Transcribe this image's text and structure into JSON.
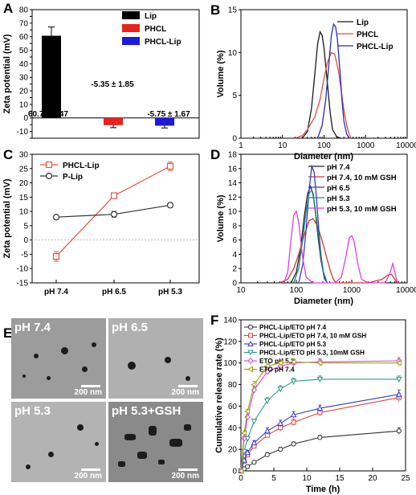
{
  "panel_labels": {
    "A": "A",
    "B": "B",
    "C": "C",
    "D": "D",
    "E": "E",
    "F": "F"
  },
  "chart_data": [
    {
      "id": "A",
      "type": "bar",
      "ylabel": "Zeta potential (mV)",
      "ylim": [
        -15,
        80
      ],
      "yticks": [
        -15,
        -10,
        -5,
        0,
        5,
        10,
        15,
        20,
        25,
        30,
        35,
        40,
        45,
        50,
        55,
        60,
        65,
        70,
        75,
        80
      ],
      "ytick_labels": [
        "",
        "-10",
        "",
        "0",
        "",
        "10",
        "",
        "20",
        "",
        "30",
        "",
        "40",
        "",
        "50",
        "",
        "60",
        "",
        "70",
        "",
        "80"
      ],
      "categories": [
        "Lip",
        "PHCL",
        "PHCL-Lip"
      ],
      "values": [
        60.7,
        -5.35,
        -5.75
      ],
      "errors": [
        6.47,
        1.85,
        1.67
      ],
      "colors": [
        "#000000",
        "#e8231b",
        "#1b1bd9"
      ],
      "legend": [
        "Lip",
        "PHCL",
        "PHCL-Lip"
      ],
      "legend_position": "top-right",
      "annotations": [
        "60.7 ± 6.47",
        "-5.35 ± 1.85",
        "-5.75 ± 1.67"
      ]
    },
    {
      "id": "B",
      "type": "line",
      "xscale": "log",
      "xlabel": "Diameter (nm)",
      "ylabel": "Volume (%)",
      "xlim": [
        1,
        10000
      ],
      "ylim": [
        0,
        15
      ],
      "xticks": [
        1,
        10,
        100,
        1000,
        10000
      ],
      "xtick_labels": [
        "1",
        "10",
        "100",
        "1000",
        "10000"
      ],
      "yticks": [
        0,
        5,
        10,
        15
      ],
      "legend_position": "top-right",
      "series": [
        {
          "name": "Lip",
          "color": "#1a1a1a",
          "x": [
            30,
            40,
            50,
            60,
            70,
            80,
            90,
            100,
            120,
            140,
            160,
            200,
            250
          ],
          "y": [
            0,
            0.8,
            3.5,
            7.5,
            11,
            12.4,
            12,
            10.5,
            6.5,
            3,
            1,
            0.2,
            0
          ]
        },
        {
          "name": "PHCL",
          "color": "#e84a3a",
          "x": [
            20,
            30,
            40,
            60,
            80,
            100,
            120,
            150,
            180,
            220,
            260,
            300,
            350,
            400,
            450
          ],
          "y": [
            0,
            0.3,
            1,
            2.5,
            4.5,
            7,
            8.8,
            10,
            9.8,
            8,
            5.5,
            3.3,
            1.5,
            0.5,
            0
          ]
        },
        {
          "name": "PHCL-Lip",
          "color": "#2a2ab8",
          "x": [
            70,
            90,
            110,
            130,
            150,
            170,
            190,
            210,
            240,
            270,
            300,
            350,
            400
          ],
          "y": [
            0,
            1.5,
            4.5,
            8.5,
            12,
            13.3,
            13,
            11.5,
            8,
            4.5,
            2,
            0.5,
            0
          ]
        }
      ]
    },
    {
      "id": "C",
      "type": "line",
      "ylabel": "Zeta potential (mV)",
      "categories": [
        "pH 7.4",
        "pH 6.5",
        "pH 5.3"
      ],
      "ylim": [
        -15,
        30
      ],
      "yticks": [
        -15,
        -10,
        -5,
        0,
        5,
        10,
        15,
        20,
        25,
        30
      ],
      "legend_position": "top-left",
      "series": [
        {
          "name": "PHCL-Lip",
          "color": "#e8543f",
          "values": [
            -5.75,
            15.5,
            25.8
          ],
          "errors": [
            1.67,
            0.8,
            1.5
          ],
          "marker": "open-square"
        },
        {
          "name": "P-Lip",
          "color": "#333333",
          "values": [
            8,
            9,
            12.2
          ],
          "errors": [
            0.5,
            1.0,
            0.8
          ],
          "marker": "open-circle"
        }
      ]
    },
    {
      "id": "D",
      "type": "line",
      "xscale": "log",
      "xlabel": "Diameter (nm)",
      "ylabel": "Volume (%)",
      "xlim": [
        10,
        10000
      ],
      "ylim": [
        0,
        18
      ],
      "xticks": [
        10,
        100,
        1000,
        10000
      ],
      "xtick_labels": [
        "10",
        "100",
        "1000",
        "10000"
      ],
      "yticks": [
        0,
        2,
        4,
        6,
        8,
        10,
        12,
        14,
        16,
        18
      ],
      "legend_position": "top-right",
      "series": [
        {
          "name": "pH 7.4",
          "color": "#222222",
          "x": [
            80,
            100,
            120,
            140,
            160,
            180,
            200,
            220,
            250,
            280,
            320,
            360
          ],
          "y": [
            0,
            1.5,
            5,
            9.5,
            12.5,
            13.5,
            12.5,
            10,
            6,
            3,
            0.8,
            0
          ]
        },
        {
          "name": "pH 7.4, 10 mM GSH",
          "color": "#d43a2e",
          "x": [
            50,
            70,
            90,
            110,
            140,
            170,
            200,
            240,
            290,
            340,
            400,
            460,
            520,
            800,
            2000,
            3500,
            4500,
            5200,
            6000,
            6600
          ],
          "y": [
            0,
            0.5,
            2,
            4,
            6.8,
            8.7,
            9,
            8,
            6,
            4,
            2,
            0.6,
            0,
            0,
            0,
            0.5,
            1.1,
            1.2,
            0.5,
            0
          ]
        },
        {
          "name": "pH 6.5",
          "color": "#3838d9",
          "x": [
            110,
            130,
            150,
            170,
            190,
            210,
            230,
            260,
            290,
            320,
            360
          ],
          "y": [
            0,
            2.5,
            7.5,
            13,
            16.3,
            15.5,
            12,
            6.5,
            2.5,
            0.6,
            0
          ]
        },
        {
          "name": "pH 5.3",
          "color": "#1f8a7a",
          "x": [
            90,
            110,
            130,
            150,
            170,
            190,
            210,
            240,
            270,
            310,
            360
          ],
          "y": [
            0,
            2,
            6,
            10,
            12.5,
            13,
            11.5,
            8,
            4.5,
            1.5,
            0
          ]
        },
        {
          "name": "pH 5.3, 10 mM GSH",
          "color": "#e040e0",
          "x": [
            60,
            70,
            80,
            90,
            100,
            110,
            130,
            150,
            200,
            300,
            500,
            650,
            800,
            900,
            1000,
            1100,
            1300,
            1500,
            2000,
            4000,
            4800,
            5500,
            6000,
            6500,
            7000
          ],
          "y": [
            0,
            1.5,
            6,
            9.5,
            10,
            8.5,
            3.5,
            0.8,
            0,
            0,
            0,
            0.8,
            4,
            6.3,
            6.6,
            5.8,
            2.5,
            0.5,
            0,
            0,
            1.2,
            2.7,
            1.5,
            0.3,
            0
          ]
        }
      ]
    },
    {
      "id": "F",
      "type": "line",
      "xlabel": "Time (h)",
      "ylabel": "Cumulative release rate (%)",
      "xlim": [
        0,
        25
      ],
      "ylim": [
        0,
        140
      ],
      "xticks": [
        0,
        5,
        10,
        15,
        20,
        25
      ],
      "yticks": [
        0,
        20,
        40,
        60,
        80,
        100,
        120,
        140
      ],
      "legend_position": "top-left",
      "series": [
        {
          "name": "PHCL-Lip/ETO pH 7.4",
          "color": "#333333",
          "marker": "open-circle",
          "x": [
            0,
            0.5,
            1,
            2,
            4,
            6,
            8,
            12,
            24
          ],
          "y": [
            0,
            2,
            4,
            8,
            15,
            20,
            25,
            31,
            37
          ],
          "errors": [
            0,
            1,
            1,
            1,
            2,
            2,
            2,
            2,
            3
          ]
        },
        {
          "name": "PHCL-Lip/ETO pH 7.4, 10 mM GSH",
          "color": "#e0413a",
          "marker": "open-square",
          "x": [
            0,
            0.5,
            1,
            2,
            4,
            6,
            8,
            12,
            24
          ],
          "y": [
            0,
            9,
            15,
            23,
            33,
            40,
            45,
            54,
            68
          ],
          "errors": [
            0,
            1,
            1,
            2,
            2,
            3,
            3,
            3,
            4
          ]
        },
        {
          "name": "PHCL-Lip/ETO pH 5.3",
          "color": "#3a3ad0",
          "marker": "open-triangle",
          "x": [
            0,
            0.5,
            1,
            2,
            4,
            6,
            8,
            12,
            24
          ],
          "y": [
            0,
            10,
            17,
            26,
            37,
            44,
            52,
            58,
            71
          ],
          "errors": [
            0,
            1,
            2,
            2,
            3,
            3,
            3,
            3,
            4
          ]
        },
        {
          "name": "PHCL-Lip/ETO pH 5.3, 10mM GSH",
          "color": "#2a9a8a",
          "marker": "open-down-triangle",
          "x": [
            0,
            0.5,
            1,
            2,
            4,
            6,
            8,
            12,
            24
          ],
          "y": [
            0,
            18,
            30,
            46,
            65,
            76,
            83,
            85,
            85
          ],
          "errors": [
            0,
            1,
            2,
            2,
            3,
            3,
            3,
            3,
            3
          ]
        },
        {
          "name": "ETO pH 5.3",
          "color": "#e040e0",
          "marker": "open-diamond",
          "x": [
            0,
            0.5,
            1,
            2,
            4,
            6,
            8,
            12,
            24
          ],
          "y": [
            0,
            30,
            50,
            75,
            92,
            97,
            100,
            101,
            102
          ],
          "errors": [
            0,
            2,
            2,
            3,
            3,
            3,
            3,
            3,
            3
          ]
        },
        {
          "name": "ETO pH 7.4",
          "color": "#a0a020",
          "marker": "open-left-triangle",
          "x": [
            0,
            0.5,
            1,
            2,
            4,
            6,
            8,
            12,
            24
          ],
          "y": [
            0,
            35,
            55,
            80,
            97,
            100,
            101,
            100,
            100
          ],
          "errors": [
            0,
            2,
            2,
            3,
            3,
            3,
            3,
            3,
            3
          ]
        }
      ]
    }
  ],
  "tem_images": [
    {
      "label": "pH 7.4",
      "scale": "200 nm"
    },
    {
      "label": "pH 6.5",
      "scale": "200 nm"
    },
    {
      "label": "pH 5.3",
      "scale": "200 nm"
    },
    {
      "label": "pH 5.3+GSH",
      "scale": "200 nm"
    }
  ]
}
